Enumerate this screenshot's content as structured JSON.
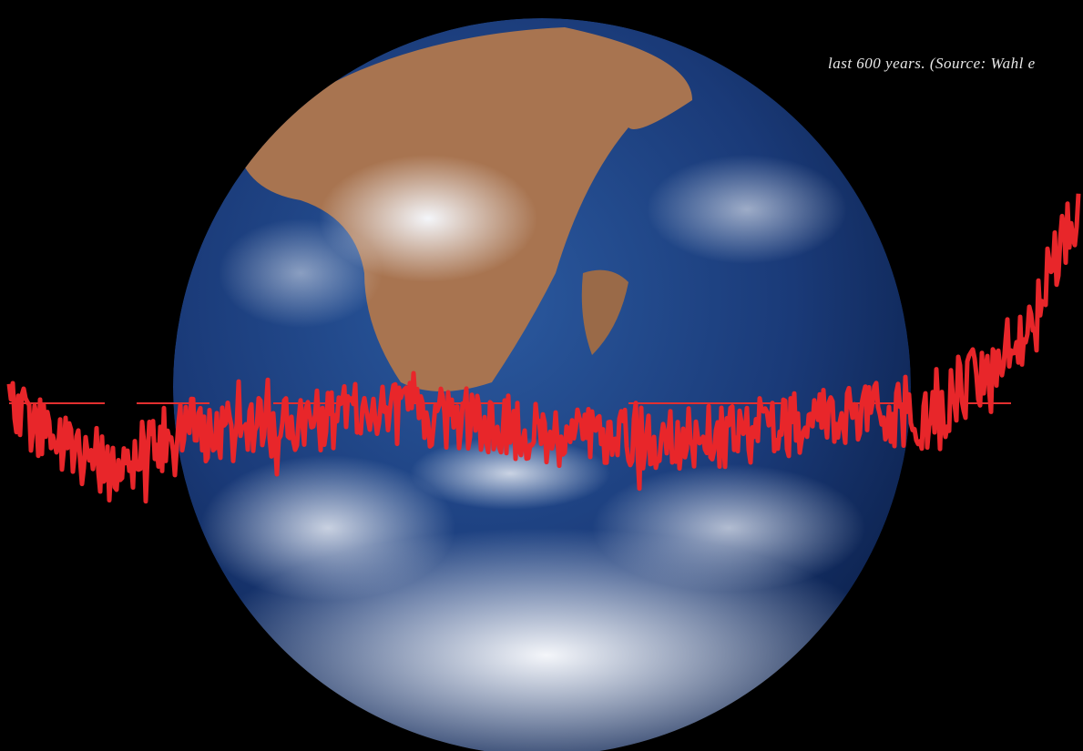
{
  "caption": {
    "text": "last 600 years. (Source: Wahl e"
  }
}
